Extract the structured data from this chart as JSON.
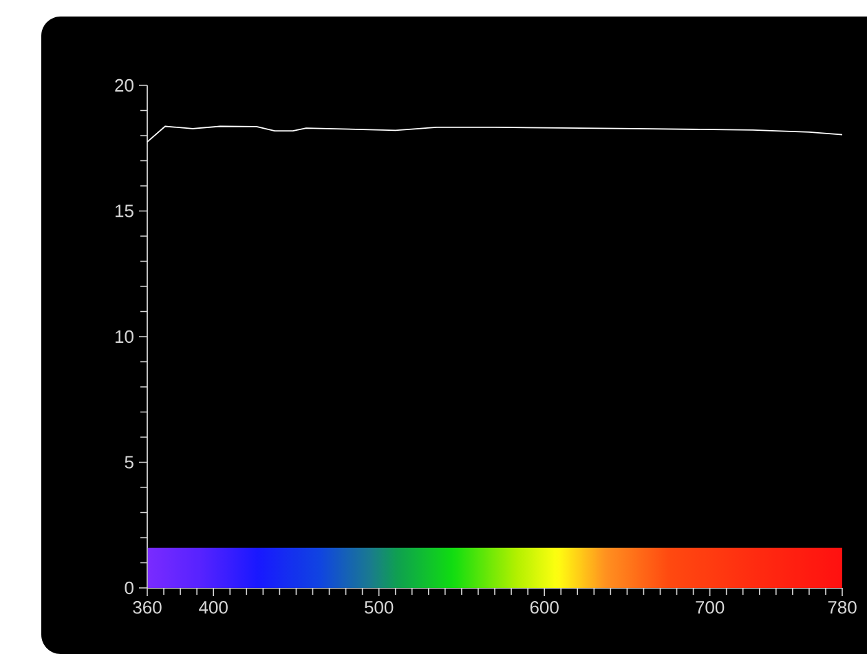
{
  "chart_data": {
    "type": "line",
    "x": [
      360,
      370.8,
      387.5,
      404,
      426,
      437,
      448,
      456,
      510,
      535,
      570,
      656,
      726,
      760,
      780
    ],
    "values": [
      17.75,
      18.37,
      18.28,
      18.37,
      18.36,
      18.19,
      18.19,
      18.3,
      18.21,
      18.33,
      18.33,
      18.28,
      18.22,
      18.14,
      18.04
    ],
    "color": "#ffffff",
    "xlim": [
      360,
      780
    ],
    "ylim": [
      0,
      20
    ],
    "xticks": [
      360,
      {
        "value": 370,
        "label": null
      },
      {
        "value": 380,
        "label": null
      },
      {
        "value": 390,
        "label": null
      },
      400,
      {
        "value": 410,
        "label": null
      },
      {
        "value": 420,
        "label": null
      },
      {
        "value": 430,
        "label": null
      },
      {
        "value": 440,
        "label": null
      },
      {
        "value": 450,
        "label": null
      },
      {
        "value": 460,
        "label": null
      },
      {
        "value": 470,
        "label": null
      },
      {
        "value": 480,
        "label": null
      },
      {
        "value": 490,
        "label": null
      },
      500,
      {
        "value": 510,
        "label": null
      },
      {
        "value": 520,
        "label": null
      },
      {
        "value": 530,
        "label": null
      },
      {
        "value": 540,
        "label": null
      },
      {
        "value": 550,
        "label": null
      },
      {
        "value": 560,
        "label": null
      },
      {
        "value": 570,
        "label": null
      },
      {
        "value": 580,
        "label": null
      },
      {
        "value": 590,
        "label": null
      },
      600,
      {
        "value": 610,
        "label": null
      },
      {
        "value": 620,
        "label": null
      },
      {
        "value": 630,
        "label": null
      },
      {
        "value": 640,
        "label": null
      },
      {
        "value": 650,
        "label": null
      },
      {
        "value": 660,
        "label": null
      },
      {
        "value": 670,
        "label": null
      },
      {
        "value": 680,
        "label": null
      },
      {
        "value": 690,
        "label": null
      },
      700,
      {
        "value": 710,
        "label": null
      },
      {
        "value": 720,
        "label": null
      },
      {
        "value": 730,
        "label": null
      },
      {
        "value": 740,
        "label": null
      },
      {
        "value": 750,
        "label": null
      },
      {
        "value": 760,
        "label": null
      },
      {
        "value": 770,
        "label": null
      },
      780
    ],
    "yticks": [
      0,
      {
        "value": 1,
        "label": null
      },
      {
        "value": 2,
        "label": null
      },
      {
        "value": 3,
        "label": null
      },
      {
        "value": 4,
        "label": null
      },
      5,
      {
        "value": 6,
        "label": null
      },
      {
        "value": 7,
        "label": null
      },
      {
        "value": 8,
        "label": null
      },
      {
        "value": 9,
        "label": null
      },
      10,
      {
        "value": 11,
        "label": null
      },
      {
        "value": 12,
        "label": null
      },
      {
        "value": 13,
        "label": null
      },
      {
        "value": 14,
        "label": null
      },
      15,
      {
        "value": 16,
        "label": null
      },
      {
        "value": 17,
        "label": null
      },
      {
        "value": 18,
        "label": null
      },
      {
        "value": 19,
        "label": null
      },
      20
    ],
    "bands": [
      {
        "axis": "y",
        "from": 0,
        "to": 1.6
      }
    ],
    "grid": false,
    "marker": "none",
    "line_style": "solid"
  }
}
